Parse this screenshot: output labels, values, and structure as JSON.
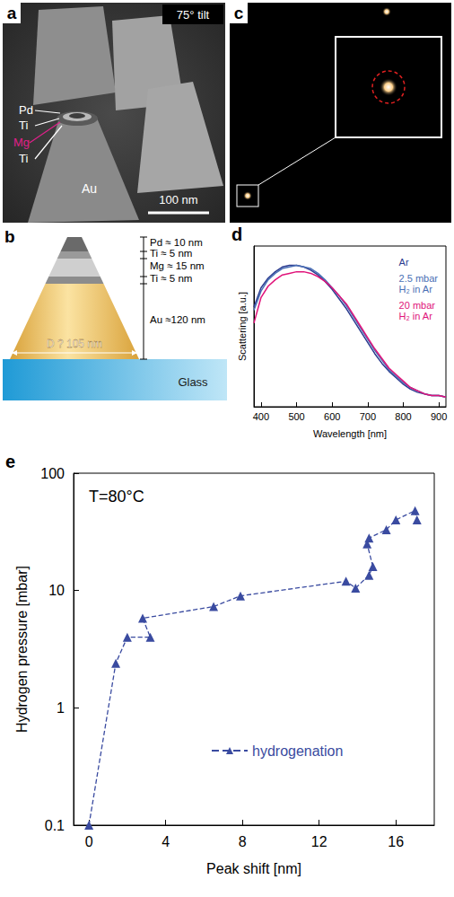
{
  "panels": {
    "a": {
      "panel": "a",
      "tilt": "75° tilt",
      "labels": [
        "Pd",
        "Ti",
        "Mg",
        "Ti",
        "Au"
      ],
      "scale_bar": "100 nm"
    },
    "b": {
      "panel": "b",
      "layers": [
        "Pd ≈ 10 nm",
        "Ti  ≈  5 nm",
        "Mg ≈ 15 nm",
        "Ti  ≈  5 nm",
        "Au ≈120 nm"
      ],
      "diameter": "D ? 105 nm",
      "substrate": "Glass"
    },
    "c": {
      "panel": "c"
    }
  },
  "chart_data": [
    {
      "panel": "d",
      "type": "line",
      "x_label": "Wavelength [nm]",
      "y_label": "Scattering [a.u.]",
      "x": [
        380,
        400,
        420,
        440,
        460,
        480,
        500,
        520,
        540,
        560,
        580,
        600,
        620,
        640,
        660,
        680,
        700,
        720,
        740,
        760,
        780,
        800,
        820,
        840,
        860,
        880,
        900,
        920
      ],
      "series": [
        {
          "name": "Ar",
          "color": "#2c3b8f",
          "values": [
            0.62,
            0.74,
            0.8,
            0.84,
            0.87,
            0.88,
            0.88,
            0.87,
            0.85,
            0.82,
            0.78,
            0.73,
            0.67,
            0.61,
            0.54,
            0.47,
            0.4,
            0.33,
            0.27,
            0.22,
            0.18,
            0.14,
            0.11,
            0.09,
            0.08,
            0.07,
            0.07,
            0.06
          ]
        },
        {
          "name": "2.5 mbar H₂ in Ar",
          "color": "#4a6fb5",
          "values": [
            0.6,
            0.72,
            0.79,
            0.83,
            0.86,
            0.87,
            0.88,
            0.87,
            0.86,
            0.83,
            0.79,
            0.74,
            0.69,
            0.63,
            0.56,
            0.49,
            0.42,
            0.35,
            0.29,
            0.23,
            0.19,
            0.15,
            0.12,
            0.1,
            0.08,
            0.07,
            0.07,
            0.06
          ]
        },
        {
          "name": "20 mbar H₂ in Ar",
          "color": "#e0137a",
          "values": [
            0.52,
            0.68,
            0.75,
            0.79,
            0.82,
            0.83,
            0.84,
            0.84,
            0.83,
            0.81,
            0.78,
            0.74,
            0.69,
            0.64,
            0.57,
            0.5,
            0.43,
            0.36,
            0.3,
            0.24,
            0.2,
            0.16,
            0.12,
            0.1,
            0.08,
            0.07,
            0.07,
            0.06
          ]
        }
      ],
      "xlim": [
        380,
        920
      ],
      "xticks": [
        400,
        500,
        600,
        700,
        800,
        900
      ],
      "ylim": [
        0,
        1
      ],
      "tick_labels": "x",
      "legend": "top-right",
      "grid": false
    },
    {
      "panel": "e",
      "type": "line",
      "annotation": "T=80°C",
      "x_label": "Peak shift [nm]",
      "y_label": "Hydrogen pressure [mbar]",
      "log": "y",
      "x": [
        0,
        1.4,
        2.0,
        3.2,
        2.8,
        6.5,
        7.9,
        13.4,
        13.9,
        14.6,
        14.8,
        14.5,
        14.6,
        15.5,
        16.0,
        17.0,
        17.1
      ],
      "series": [
        {
          "name": "hydrogenation",
          "color": "#3a4ba0",
          "marker": "triangle",
          "line_style": "dashed",
          "values": [
            0.1,
            2.4,
            4.0,
            4.0,
            5.8,
            7.3,
            9.0,
            12,
            10.5,
            13.5,
            16,
            25,
            28,
            33,
            40,
            48,
            40
          ]
        }
      ],
      "xlim": [
        -0.8,
        18
      ],
      "xticks": [
        0,
        4,
        8,
        12,
        16
      ],
      "ylim": [
        0.1,
        100
      ],
      "yticks": [
        0.1,
        1,
        10,
        100
      ],
      "legend": "center",
      "grid": false
    }
  ]
}
